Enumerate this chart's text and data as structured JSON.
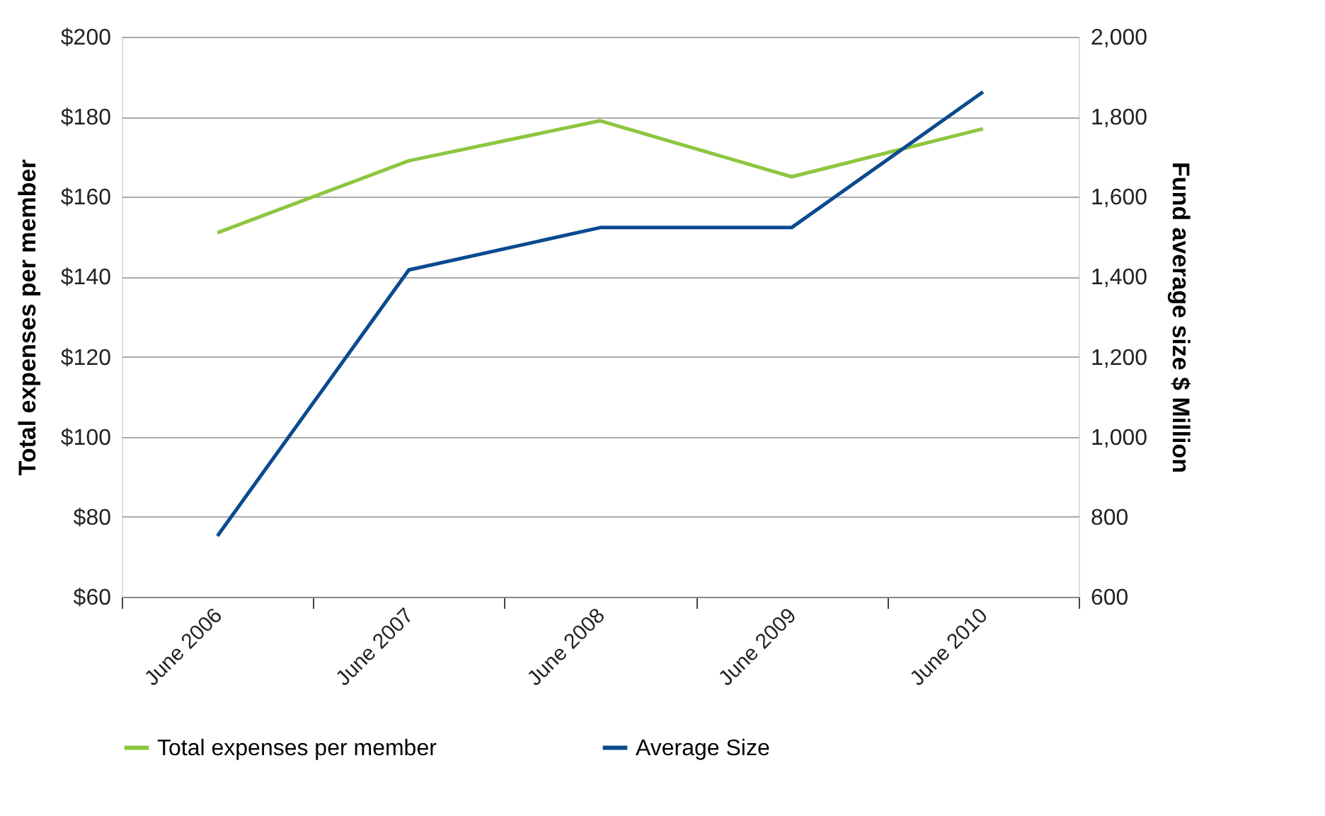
{
  "chart_data": {
    "type": "line",
    "categories": [
      "June 2006",
      "June 2007",
      "June 2008",
      "June 2009",
      "June 2010"
    ],
    "ylabel": "Total expenses per member",
    "y2label": "Fund average size $ Million",
    "series": [
      {
        "name": "Total expenses per member",
        "color": "#8dc63f",
        "values": [
          151,
          169,
          179,
          165,
          177
        ]
      },
      {
        "name": "Average Size",
        "color": "#0b4a8f",
        "axis": "y2",
        "values": [
          752,
          1417,
          1523,
          1523,
          1862
        ]
      }
    ],
    "ylim": [
      60,
      200
    ],
    "yticks": [
      {
        "value": 60,
        "label": "$60"
      },
      {
        "value": 80,
        "label": "$80"
      },
      {
        "value": 100,
        "label": "$100"
      },
      {
        "value": 120,
        "label": "$120"
      },
      {
        "value": 140,
        "label": "$140"
      },
      {
        "value": 160,
        "label": "$160"
      },
      {
        "value": 180,
        "label": "$180"
      },
      {
        "value": 200,
        "label": "$200"
      }
    ],
    "y2lim": [
      600,
      2000
    ],
    "y2ticks": [
      600,
      800,
      {
        "value": 1000,
        "label": "1,000"
      },
      {
        "value": 1200,
        "label": "1,200"
      },
      {
        "value": 1400,
        "label": "1,400"
      },
      {
        "value": 1600,
        "label": "1,600"
      },
      {
        "value": 1800,
        "label": "1,800"
      },
      {
        "value": 2000,
        "label": "2,000"
      }
    ],
    "grid": "y",
    "legend": "bottom",
    "marker": "none",
    "line_style": "solid"
  }
}
